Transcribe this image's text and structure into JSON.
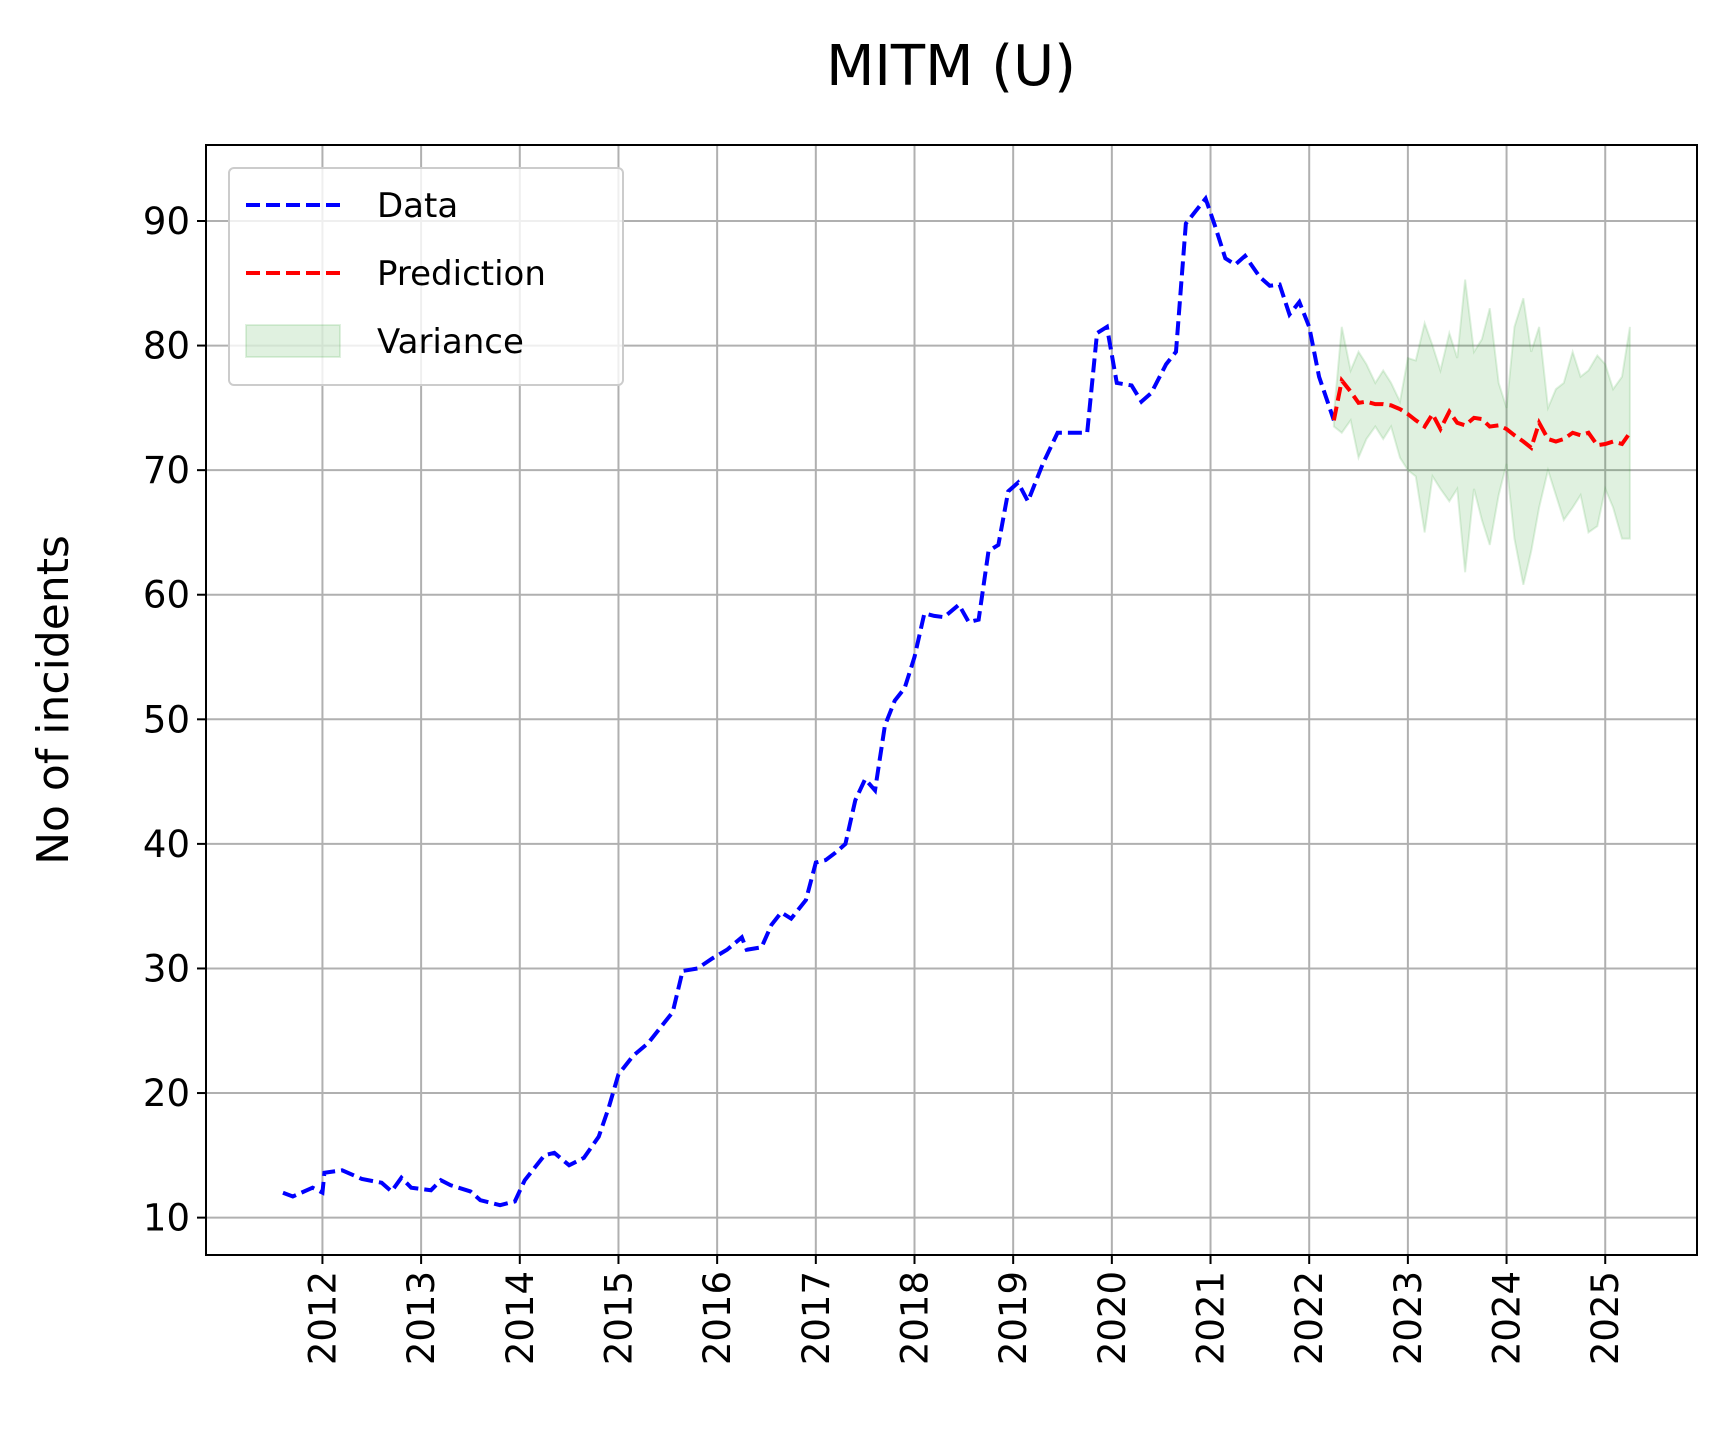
{
  "chart_data": {
    "type": "line",
    "title": "MITM (U)",
    "y_label": "No of incidents",
    "xlim": [
      2010.82,
      2025.93
    ],
    "xticks": [
      2012,
      2013,
      2014,
      2015,
      2016,
      2017,
      2018,
      2019,
      2020,
      2021,
      2022,
      2023,
      2024,
      2025
    ],
    "ylim": [
      7.0,
      96.1
    ],
    "yticks": [
      10,
      20,
      30,
      40,
      50,
      60,
      70,
      80,
      90
    ],
    "grid": true,
    "legend": "upper left",
    "series": [
      {
        "name": "Data",
        "color": "#0000ff",
        "style": "dashed",
        "x": [
          2011.6,
          2011.7,
          2011.9,
          2012.0,
          2012.02,
          2012.2,
          2012.4,
          2012.6,
          2012.7,
          2012.8,
          2012.9,
          2013.1,
          2013.2,
          2013.3,
          2013.5,
          2013.6,
          2013.8,
          2013.95,
          2014.05,
          2014.15,
          2014.25,
          2014.35,
          2014.5,
          2014.65,
          2014.8,
          2014.9,
          2015.0,
          2015.15,
          2015.3,
          2015.45,
          2015.55,
          2015.65,
          2015.8,
          2015.95,
          2016.1,
          2016.25,
          2016.3,
          2016.45,
          2016.55,
          2016.65,
          2016.75,
          2016.9,
          2017.0,
          2017.1,
          2017.2,
          2017.3,
          2017.4,
          2017.5,
          2017.6,
          2017.7,
          2017.8,
          2017.9,
          2018.0,
          2018.1,
          2018.2,
          2018.3,
          2018.45,
          2018.55,
          2018.65,
          2018.75,
          2018.85,
          2018.95,
          2019.05,
          2019.15,
          2019.3,
          2019.45,
          2019.6,
          2019.75,
          2019.85,
          2019.95,
          2020.05,
          2020.2,
          2020.3,
          2020.4,
          2020.55,
          2020.65,
          2020.75,
          2020.85,
          2020.95,
          2021.05,
          2021.15,
          2021.25,
          2021.35,
          2021.5,
          2021.6,
          2021.7,
          2021.8,
          2021.9,
          2022.0,
          2022.1,
          2022.25
        ],
        "values": [
          12.0,
          11.7,
          12.4,
          12.0,
          13.6,
          13.8,
          13.1,
          12.8,
          12.1,
          13.2,
          12.4,
          12.2,
          13.0,
          12.6,
          12.1,
          11.4,
          11.0,
          11.3,
          13.0,
          14.0,
          15.0,
          15.2,
          14.2,
          14.8,
          16.5,
          18.8,
          21.5,
          23.0,
          24.0,
          25.5,
          26.5,
          29.8,
          30.0,
          30.8,
          31.5,
          32.5,
          31.5,
          31.7,
          33.5,
          34.5,
          34.0,
          35.5,
          38.5,
          38.7,
          39.3,
          40.0,
          43.5,
          45.2,
          44.3,
          49.5,
          51.5,
          52.5,
          55.0,
          58.5,
          58.3,
          58.2,
          59.2,
          57.8,
          58.0,
          63.5,
          64.0,
          68.3,
          69.0,
          67.5,
          70.5,
          73.0,
          73.0,
          73.0,
          81.0,
          81.5,
          77.0,
          76.8,
          75.5,
          76.2,
          78.5,
          79.5,
          89.8,
          90.8,
          91.8,
          89.5,
          87.0,
          86.5,
          87.2,
          85.5,
          84.8,
          84.9,
          82.5,
          83.5,
          81.5,
          77.5,
          74.0
        ]
      },
      {
        "name": "Prediction",
        "color": "#ff0000",
        "style": "dashed",
        "x": [
          2022.25,
          2022.33,
          2022.42,
          2022.5,
          2022.58,
          2022.67,
          2022.75,
          2022.83,
          2022.92,
          2023.0,
          2023.08,
          2023.17,
          2023.25,
          2023.33,
          2023.42,
          2023.5,
          2023.58,
          2023.67,
          2023.75,
          2023.83,
          2023.92,
          2024.0,
          2024.08,
          2024.17,
          2024.25,
          2024.33,
          2024.42,
          2024.5,
          2024.58,
          2024.67,
          2024.75,
          2024.83,
          2024.92,
          2025.0,
          2025.08,
          2025.17,
          2025.25
        ],
        "values": [
          74.0,
          77.2,
          76.3,
          75.4,
          75.5,
          75.3,
          75.3,
          75.2,
          74.9,
          74.5,
          74.0,
          73.5,
          74.5,
          73.3,
          74.7,
          73.8,
          73.6,
          74.2,
          74.1,
          73.5,
          73.6,
          73.3,
          72.8,
          72.3,
          71.8,
          73.8,
          72.5,
          72.3,
          72.5,
          73.0,
          72.8,
          73.0,
          72.0,
          72.1,
          72.3,
          72.1,
          73.0
        ]
      },
      {
        "name": "Variance",
        "color": "#2ca02c",
        "style": "band",
        "x": [
          2022.25,
          2022.33,
          2022.42,
          2022.5,
          2022.58,
          2022.67,
          2022.75,
          2022.83,
          2022.92,
          2023.0,
          2023.08,
          2023.17,
          2023.25,
          2023.33,
          2023.42,
          2023.5,
          2023.58,
          2023.67,
          2023.75,
          2023.83,
          2023.92,
          2024.0,
          2024.08,
          2024.17,
          2024.25,
          2024.33,
          2024.42,
          2024.5,
          2024.58,
          2024.67,
          2024.75,
          2024.83,
          2024.92,
          2025.0,
          2025.08,
          2025.17,
          2025.25
        ],
        "upper": [
          74.5,
          81.5,
          78.0,
          79.5,
          78.5,
          77.0,
          78.0,
          77.0,
          75.5,
          79.0,
          78.8,
          81.8,
          80.0,
          78.0,
          81.0,
          79.0,
          85.3,
          79.5,
          80.5,
          83.0,
          77.0,
          75.0,
          81.5,
          83.8,
          79.5,
          81.5,
          75.0,
          76.5,
          77.0,
          79.5,
          77.5,
          78.0,
          79.2,
          78.5,
          76.5,
          77.5,
          81.5
        ],
        "lower": [
          73.5,
          73.0,
          74.0,
          71.0,
          72.5,
          73.5,
          72.5,
          73.5,
          71.0,
          70.0,
          69.5,
          65.0,
          69.5,
          68.5,
          67.5,
          68.5,
          61.8,
          68.5,
          66.0,
          64.0,
          68.0,
          70.5,
          64.5,
          60.8,
          63.5,
          67.0,
          70.0,
          68.0,
          66.0,
          67.0,
          68.0,
          65.0,
          65.5,
          68.5,
          67.0,
          64.5,
          64.5
        ]
      }
    ]
  }
}
